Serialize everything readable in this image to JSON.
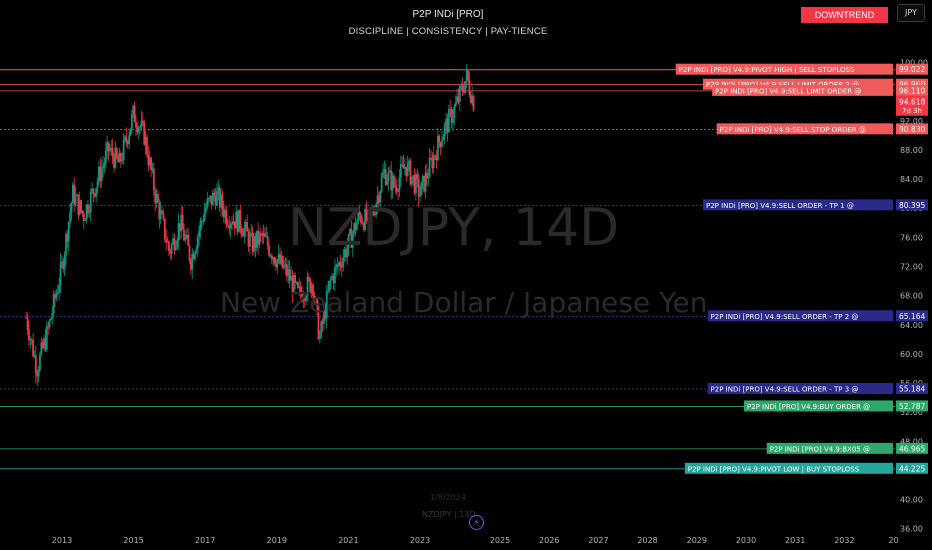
{
  "header": {
    "title": "P2P INDi [PRO]",
    "subtitle": "DISCIPLINE   |   CONSISTENCY   |   PAY-TIENCE",
    "trend_badge": "DOWNTREND",
    "currency": "JPY"
  },
  "watermark": {
    "symbol": "NZDJPY, 14D",
    "description": "New Zealand Dollar / Japanese Yen"
  },
  "footer": {
    "date": "1/8/2024",
    "symbol": "NZDJPY | 14D"
  },
  "colors": {
    "up": "#089981",
    "down": "#f23645",
    "sell_label": "#f05a5a",
    "tp_label": "#2a2a8a",
    "buy_label": "#2ea86a",
    "stoploss_label": "#26a69a"
  },
  "chart_data": {
    "type": "candlestick",
    "ylim": [
      35,
      102
    ],
    "y_ticks": [
      36,
      40,
      44,
      48,
      52,
      56,
      60,
      64,
      68,
      72,
      76,
      80,
      84,
      88,
      92,
      96,
      100
    ],
    "x_ticks": [
      "2013",
      "2015",
      "2017",
      "2019",
      "2021",
      "2023",
      "2025",
      "2026",
      "2027",
      "2028",
      "2029",
      "2030",
      "2031",
      "2032",
      "20"
    ],
    "levels": [
      {
        "label": "P2P INDi [PRO] V4.9:PIVOT HIGH | SELL STOPLOSS",
        "value": "99.022",
        "kind": "sell"
      },
      {
        "label": "P2P INDi [PRO] V4.9:SELL LIMIT ORDER 2 @",
        "value": "96.960",
        "kind": "sell"
      },
      {
        "label": "P2P INDi [PRO] V4.9:SELL LIMIT ORDER @",
        "value": "96.110",
        "kind": "sell"
      },
      {
        "label": "P2P INDi [PRO] V4.9:SELL STOP ORDER @",
        "value": "90.830",
        "kind": "sell"
      },
      {
        "label": "P2P INDi [PRO] V4.9:SELL ORDER - TP 1  @",
        "value": "80.395",
        "kind": "tp"
      },
      {
        "label": "P2P INDi [PRO] V4.9:SELL ORDER - TP 2 @",
        "value": "65.164",
        "kind": "tp"
      },
      {
        "label": "P2P INDi [PRO] V4.9:SELL ORDER - TP 3 @",
        "value": "55.184",
        "kind": "tp"
      },
      {
        "label": "P2P INDi [PRO] V4.9:BUY ORDER @",
        "value": "52.787",
        "kind": "buy"
      },
      {
        "label": "P2P INDi [PRO] V4.9:BX05 @",
        "value": "46.965",
        "kind": "buy"
      },
      {
        "label": "P2P INDi [PRO] V4.9:PIVOT LOW | BUY STOPLOSS",
        "value": "44.225",
        "kind": "stoploss"
      }
    ],
    "current_price": "94.618",
    "countdown": "7d 3h",
    "series": [
      {
        "t": "2012.0",
        "c": 65.0
      },
      {
        "t": "2012.3",
        "c": 58.0
      },
      {
        "t": "2012.6",
        "c": 63.0
      },
      {
        "t": "2013.0",
        "c": 72.0
      },
      {
        "t": "2013.3",
        "c": 82.0
      },
      {
        "t": "2013.6",
        "c": 79.0
      },
      {
        "t": "2014.0",
        "c": 84.0
      },
      {
        "t": "2014.3",
        "c": 88.0
      },
      {
        "t": "2014.6",
        "c": 86.0
      },
      {
        "t": "2015.0",
        "c": 93.0
      },
      {
        "t": "2015.3",
        "c": 90.0
      },
      {
        "t": "2015.6",
        "c": 82.0
      },
      {
        "t": "2016.0",
        "c": 74.0
      },
      {
        "t": "2016.3",
        "c": 78.0
      },
      {
        "t": "2016.6",
        "c": 73.0
      },
      {
        "t": "2017.0",
        "c": 80.0
      },
      {
        "t": "2017.3",
        "c": 82.0
      },
      {
        "t": "2017.6",
        "c": 79.0
      },
      {
        "t": "2018.0",
        "c": 78.0
      },
      {
        "t": "2018.3",
        "c": 75.0
      },
      {
        "t": "2018.6",
        "c": 76.0
      },
      {
        "t": "2019.0",
        "c": 73.0
      },
      {
        "t": "2019.3",
        "c": 71.0
      },
      {
        "t": "2019.6",
        "c": 68.0
      },
      {
        "t": "2020.0",
        "c": 70.0
      },
      {
        "t": "2020.2",
        "c": 62.0
      },
      {
        "t": "2020.5",
        "c": 70.0
      },
      {
        "t": "2021.0",
        "c": 75.0
      },
      {
        "t": "2021.3",
        "c": 79.0
      },
      {
        "t": "2021.6",
        "c": 78.0
      },
      {
        "t": "2022.0",
        "c": 85.0
      },
      {
        "t": "2022.3",
        "c": 83.0
      },
      {
        "t": "2022.6",
        "c": 86.0
      },
      {
        "t": "2023.0",
        "c": 82.0
      },
      {
        "t": "2023.3",
        "c": 86.0
      },
      {
        "t": "2023.6",
        "c": 90.0
      },
      {
        "t": "2024.0",
        "c": 94.0
      },
      {
        "t": "2024.3",
        "c": 98.0
      },
      {
        "t": "2024.5",
        "c": 94.6
      }
    ]
  }
}
